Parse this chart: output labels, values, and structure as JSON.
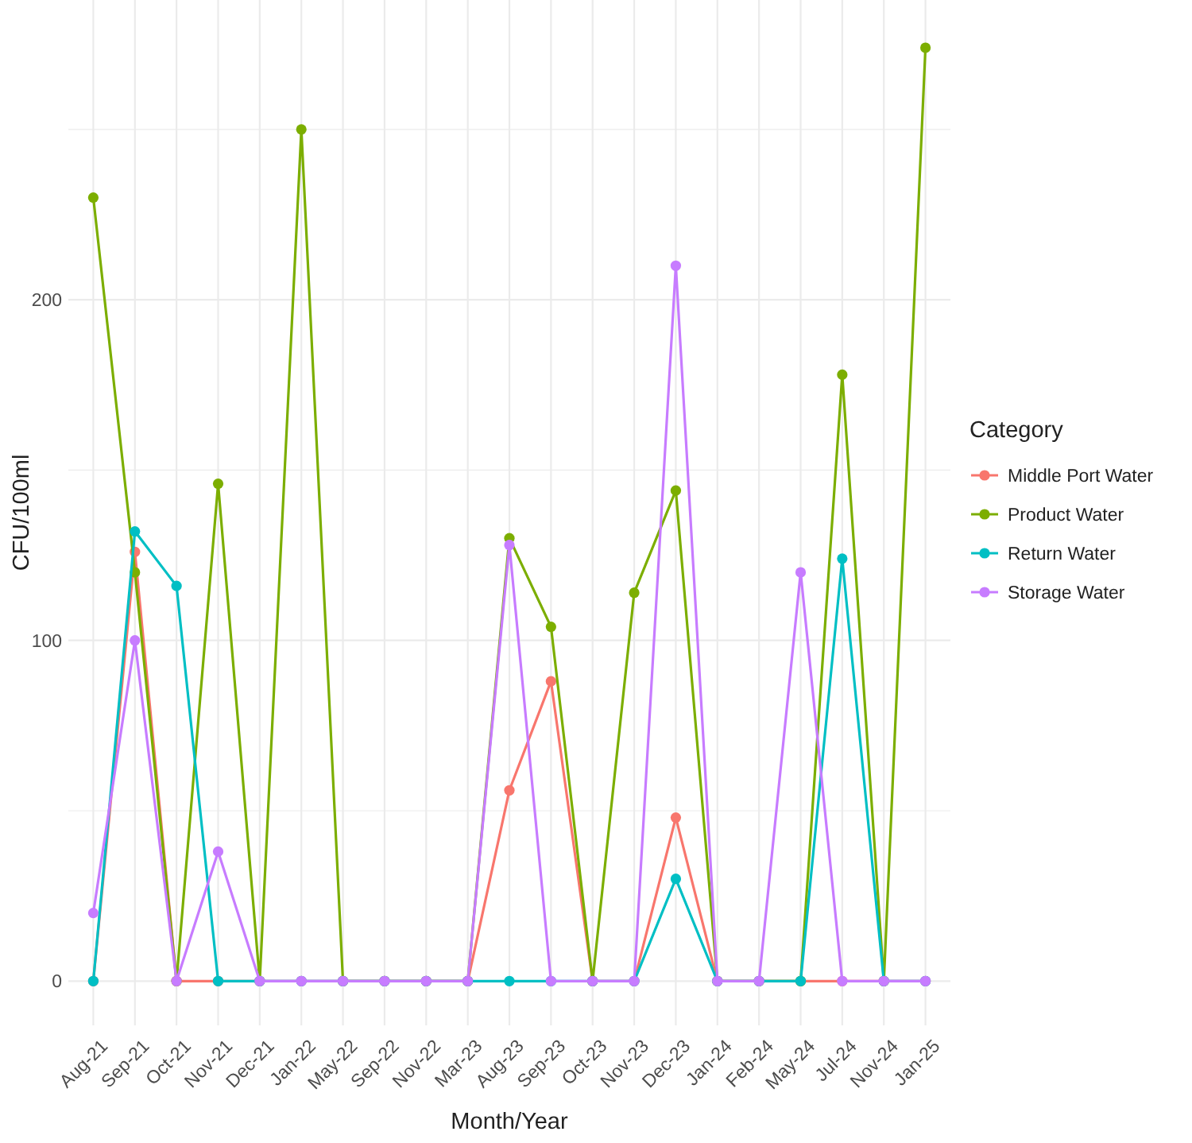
{
  "chart_data": {
    "type": "line",
    "xlabel": "Month/Year",
    "ylabel": "CFU/100ml",
    "legend_title": "Category",
    "legend": "right",
    "grid": true,
    "marker": "circle",
    "line_style": "solid",
    "categories": [
      "Aug-21",
      "Sep-21",
      "Oct-21",
      "Nov-21",
      "Dec-21",
      "Jan-22",
      "May-22",
      "Sep-22",
      "Nov-22",
      "Mar-23",
      "Aug-23",
      "Sep-23",
      "Oct-23",
      "Nov-23",
      "Dec-23",
      "Jan-24",
      "Feb-24",
      "May-24",
      "Jul-24",
      "Nov-24",
      "Jan-25"
    ],
    "ylim": [
      -13,
      288
    ],
    "yticks": [
      0,
      {
        "value": 50,
        "label": null
      },
      100,
      {
        "value": 150,
        "label": null
      },
      200,
      {
        "value": 250,
        "label": null
      }
    ],
    "series": [
      {
        "name": "Middle Port Water",
        "color": "#f8766d",
        "values": [
          0,
          126,
          0,
          0,
          0,
          0,
          0,
          0,
          0,
          0,
          56,
          88,
          0,
          0,
          48,
          0,
          0,
          0,
          0,
          0,
          0
        ]
      },
      {
        "name": "Product Water",
        "color": "#7cae00",
        "values": [
          230,
          120,
          0,
          146,
          0,
          250,
          0,
          0,
          0,
          0,
          130,
          104,
          0,
          114,
          144,
          0,
          0,
          0,
          178,
          0,
          274
        ]
      },
      {
        "name": "Return Water",
        "color": "#00bfc4",
        "values": [
          0,
          132,
          116,
          0,
          0,
          0,
          0,
          0,
          0,
          0,
          0,
          0,
          0,
          0,
          30,
          0,
          0,
          0,
          124,
          0,
          0
        ]
      },
      {
        "name": "Storage Water",
        "color": "#c77cff",
        "values": [
          20,
          100,
          0,
          38,
          0,
          0,
          0,
          0,
          0,
          0,
          128,
          0,
          0,
          0,
          210,
          0,
          0,
          120,
          0,
          0,
          0
        ]
      }
    ]
  }
}
